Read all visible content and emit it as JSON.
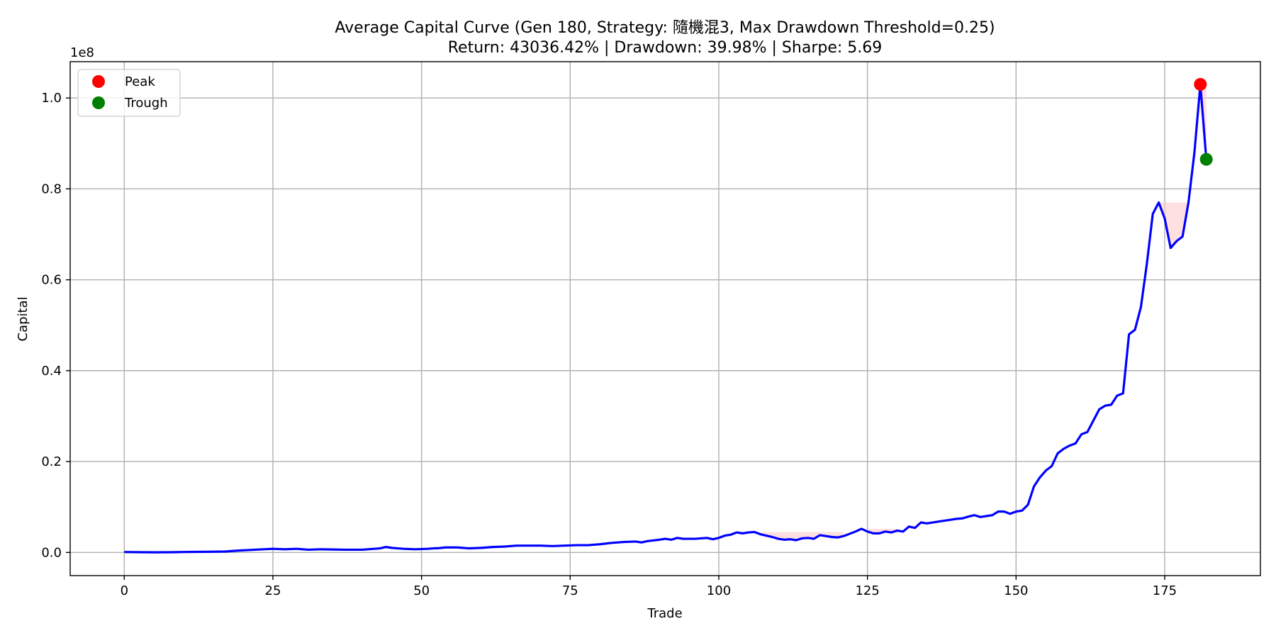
{
  "chart_data": {
    "type": "line",
    "title": "Average Capital Curve (Gen 180, Strategy: 隨機混3, Max Drawdown Threshold=0.25)",
    "subtitle": "Return: 43036.42% | Drawdown: 39.98% | Sharpe: 5.69",
    "xlabel": "Trade",
    "ylabel": "Capital",
    "y_scale_label": "1e8",
    "xlim": [
      -9.1,
      191.1
    ],
    "ylim": [
      -0.051,
      1.0799
    ],
    "x_ticks": [
      0,
      25,
      50,
      75,
      100,
      125,
      150,
      175
    ],
    "x_tick_labels": [
      "0",
      "25",
      "50",
      "75",
      "100",
      "125",
      "150",
      "175"
    ],
    "y_ticks": [
      0.0,
      0.2,
      0.4,
      0.6,
      0.8,
      1.0
    ],
    "y_tick_labels": [
      "0.0",
      "0.2",
      "0.4",
      "0.6",
      "0.8",
      "1.0"
    ],
    "grid": true,
    "legend_position": "top-left",
    "series": [
      {
        "name": "",
        "color": "#0000ff",
        "x": [
          0,
          3,
          5,
          8,
          10,
          12,
          14,
          17,
          18,
          19,
          22,
          25,
          27,
          29,
          31,
          33,
          35,
          37,
          40,
          42,
          43,
          44,
          45,
          47,
          49,
          51,
          52,
          53,
          54,
          56,
          58,
          60,
          62,
          64,
          66,
          68,
          70,
          72,
          74,
          76,
          78,
          79,
          80,
          82,
          84,
          86,
          87,
          88,
          90,
          91,
          92,
          93,
          94,
          96,
          98,
          99,
          100,
          101,
          102,
          103,
          104,
          105,
          106,
          107,
          109,
          110,
          111,
          112,
          113,
          114,
          115,
          116,
          117,
          119,
          120,
          121,
          123,
          124,
          125,
          126,
          127,
          128,
          129,
          130,
          131,
          132,
          133,
          134,
          135,
          137,
          138,
          139,
          140,
          141,
          142,
          143,
          144,
          145,
          146,
          147,
          148,
          149,
          150,
          151,
          152,
          153,
          154,
          155,
          156,
          157,
          158,
          159,
          160,
          161,
          162,
          163,
          164,
          165,
          166,
          167,
          168,
          169,
          170,
          171,
          172,
          173,
          174,
          175,
          176,
          177,
          178,
          179,
          180,
          181,
          182
        ],
        "values": [
          0.001,
          0.0005,
          0.0003,
          0.0005,
          0.001,
          0.0012,
          0.0015,
          0.002,
          0.003,
          0.004,
          0.006,
          0.008,
          0.007,
          0.008,
          0.006,
          0.007,
          0.0065,
          0.006,
          0.006,
          0.008,
          0.009,
          0.012,
          0.01,
          0.008,
          0.007,
          0.008,
          0.009,
          0.0095,
          0.011,
          0.011,
          0.009,
          0.01,
          0.012,
          0.013,
          0.015,
          0.015,
          0.015,
          0.014,
          0.015,
          0.016,
          0.016,
          0.017,
          0.018,
          0.021,
          0.023,
          0.024,
          0.022,
          0.025,
          0.028,
          0.03,
          0.028,
          0.032,
          0.03,
          0.03,
          0.032,
          0.029,
          0.032,
          0.037,
          0.039,
          0.044,
          0.042,
          0.044,
          0.045,
          0.04,
          0.034,
          0.03,
          0.028,
          0.029,
          0.027,
          0.031,
          0.032,
          0.03,
          0.038,
          0.034,
          0.033,
          0.036,
          0.046,
          0.052,
          0.046,
          0.042,
          0.042,
          0.046,
          0.044,
          0.048,
          0.046,
          0.057,
          0.054,
          0.066,
          0.064,
          0.068,
          0.07,
          0.072,
          0.074,
          0.075,
          0.079,
          0.082,
          0.078,
          0.08,
          0.082,
          0.09,
          0.09,
          0.085,
          0.09,
          0.092,
          0.105,
          0.145,
          0.165,
          0.18,
          0.19,
          0.218,
          0.228,
          0.235,
          0.24,
          0.26,
          0.265,
          0.29,
          0.315,
          0.323,
          0.325,
          0.345,
          0.35,
          0.48,
          0.49,
          0.54,
          0.635,
          0.745,
          0.77,
          0.735,
          0.67,
          0.685,
          0.695,
          0.77,
          0.88,
          1.03,
          0.865
        ]
      }
    ],
    "drawdown_shading": [
      {
        "x_start": 107,
        "x_end": 121,
        "level": 0.045,
        "color": "#ffcccc"
      },
      {
        "x_start": 125,
        "x_end": 130,
        "level": 0.052,
        "color": "#ffcccc"
      },
      {
        "x_start": 174,
        "x_end": 179,
        "level": 0.77,
        "color": "#ffcccc"
      },
      {
        "x_start": 181,
        "x_end": 182,
        "level": 1.03,
        "color": "#ffcccc"
      }
    ],
    "markers": [
      {
        "name": "Peak",
        "x": 181,
        "y": 1.03,
        "color": "#ff0000"
      },
      {
        "name": "Trough",
        "x": 182,
        "y": 0.865,
        "color": "#008000"
      }
    ]
  }
}
